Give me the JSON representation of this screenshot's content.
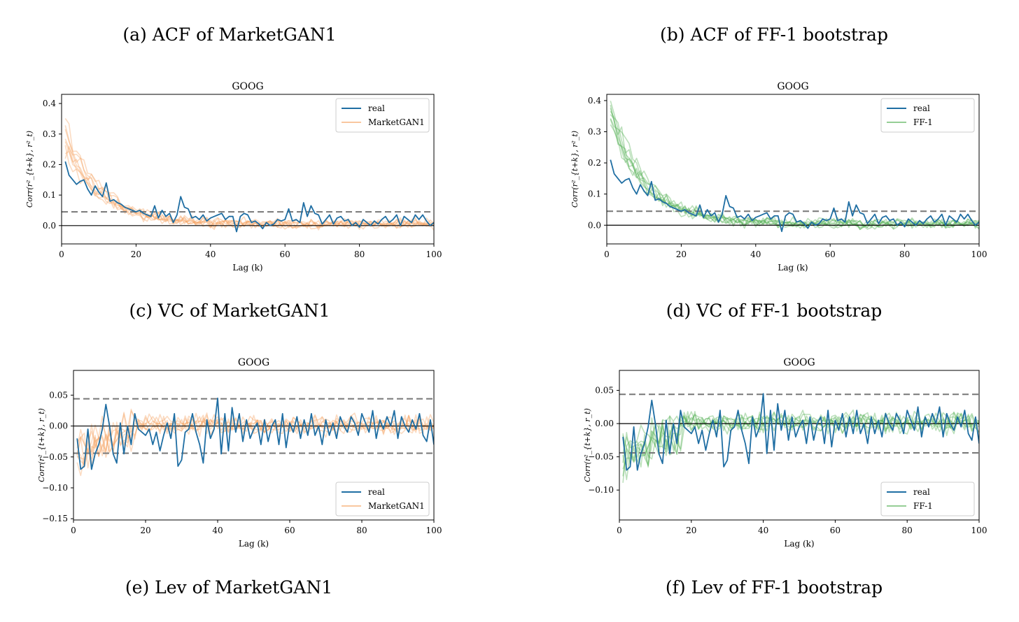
{
  "captions": [
    "(a) ACF of MarketGAN1",
    "(b) ACF of FF-1 bootstrap",
    "(c) VC of MarketGAN1",
    "(d) VC of FF-1 bootstrap",
    "(e) Lev of MarketGAN1",
    "(f) Lev of FF-1 bootstrap"
  ],
  "colors": {
    "real": "#1f6ea3",
    "marketgan": "#f5a15f",
    "ff1": "#4fae4f",
    "dashed": "#777777",
    "zero": "#000000"
  },
  "chart_data": [
    {
      "type": "line",
      "title": "GOOG",
      "ylabel": "Corr(r²_{t+k}, r²_t)",
      "xlabel": "Lag (k)",
      "xlim": [
        0,
        100
      ],
      "ylim": [
        -0.06,
        0.43
      ],
      "xticks": [
        "0",
        "20",
        "40",
        "60",
        "80",
        "100"
      ],
      "yticks": [
        [
          "0.0",
          0.0
        ],
        [
          "0.1",
          0.1
        ],
        [
          "0.2",
          0.2
        ],
        [
          "0.3",
          0.3
        ],
        [
          "0.4",
          0.4
        ]
      ],
      "hlines": {
        "zero": 0.0,
        "dashed": [
          0.045
        ]
      },
      "legend": {
        "position": "top-right",
        "entries": [
          "real",
          "MarketGAN1"
        ]
      },
      "series": [
        {
          "name": "real",
          "kind": "acf",
          "values": [
            0.21,
            0.165,
            0.15,
            0.135,
            0.145,
            0.15,
            0.12,
            0.1,
            0.13,
            0.11,
            0.095,
            0.14,
            0.08,
            0.085,
            0.075,
            0.07,
            0.06,
            0.055,
            0.05,
            0.045,
            0.05,
            0.04,
            0.035,
            0.03,
            0.065,
            0.025,
            0.05,
            0.03,
            0.04,
            0.01,
            0.035,
            0.095,
            0.06,
            0.055,
            0.025,
            0.03,
            0.02,
            0.035,
            0.015,
            0.025,
            0.03,
            0.035,
            0.04,
            0.02,
            0.03,
            0.03,
            -0.02,
            0.03,
            0.04,
            0.035,
            0.01,
            0.015,
            0.005,
            -0.01,
            0.01,
            0.0,
            0.005,
            0.02,
            0.015,
            0.02,
            0.055,
            0.015,
            0.02,
            0.01,
            0.075,
            0.03,
            0.065,
            0.04,
            0.035,
            0.005,
            0.02,
            0.035,
            0.005,
            0.025,
            0.03,
            0.015,
            0.02,
            0.0,
            0.01,
            -0.005,
            0.02,
            0.01,
            0.0,
            0.015,
            0.005,
            0.02,
            0.03,
            0.01,
            0.02,
            0.035,
            0.0,
            0.03,
            0.02,
            0.01,
            0.035,
            0.02,
            0.035,
            0.015,
            0.0,
            0.01
          ]
        },
        {
          "name": "MarketGAN1",
          "kind": "synthetic",
          "lines": 8,
          "seed": 11,
          "start": 0.29
        }
      ]
    },
    {
      "type": "line",
      "title": "GOOG",
      "ylabel": "Corr(r²_{t+k}, r²_t)",
      "xlabel": "Lag (k)",
      "xlim": [
        0,
        100
      ],
      "ylim": [
        -0.06,
        0.42
      ],
      "xticks": [
        "0",
        "20",
        "40",
        "60",
        "80",
        "100"
      ],
      "yticks": [
        [
          "0.0",
          0.0
        ],
        [
          "0.1",
          0.1
        ],
        [
          "0.2",
          0.2
        ],
        [
          "0.3",
          0.3
        ],
        [
          "0.4",
          0.4
        ]
      ],
      "hlines": {
        "zero": 0.0,
        "dashed": [
          0.045
        ]
      },
      "legend": {
        "position": "top-right",
        "entries": [
          "real",
          "FF-1"
        ]
      },
      "series": [
        {
          "name": "real",
          "kind": "acf",
          "values": [
            0.21,
            0.165,
            0.15,
            0.135,
            0.145,
            0.15,
            0.12,
            0.1,
            0.13,
            0.11,
            0.095,
            0.14,
            0.08,
            0.085,
            0.075,
            0.07,
            0.06,
            0.055,
            0.05,
            0.045,
            0.05,
            0.04,
            0.035,
            0.03,
            0.065,
            0.025,
            0.05,
            0.03,
            0.04,
            0.01,
            0.035,
            0.095,
            0.06,
            0.055,
            0.025,
            0.03,
            0.02,
            0.035,
            0.015,
            0.025,
            0.03,
            0.035,
            0.04,
            0.02,
            0.03,
            0.03,
            -0.02,
            0.03,
            0.04,
            0.035,
            0.01,
            0.015,
            0.005,
            -0.01,
            0.01,
            0.0,
            0.005,
            0.02,
            0.015,
            0.02,
            0.055,
            0.015,
            0.02,
            0.01,
            0.075,
            0.03,
            0.065,
            0.04,
            0.035,
            0.005,
            0.02,
            0.035,
            0.005,
            0.025,
            0.03,
            0.015,
            0.02,
            0.0,
            0.01,
            -0.005,
            0.02,
            0.01,
            0.0,
            0.015,
            0.005,
            0.02,
            0.03,
            0.01,
            0.02,
            0.035,
            0.0,
            0.03,
            0.02,
            0.01,
            0.035,
            0.02,
            0.035,
            0.015,
            0.0,
            0.01
          ]
        },
        {
          "name": "FF-1",
          "kind": "synthetic",
          "lines": 8,
          "seed": 23,
          "start": 0.35
        }
      ]
    },
    {
      "type": "line",
      "title": "GOOG",
      "ylabel": "Corr(r²_{t+k}, r_t)",
      "xlabel": "Lag (k)",
      "xlim": [
        0,
        100
      ],
      "ylim": [
        -0.152,
        0.09
      ],
      "xticks": [
        "0",
        "20",
        "40",
        "60",
        "80",
        "100"
      ],
      "yticks": [
        [
          "0.05",
          0.05
        ],
        [
          "0.00",
          0.0
        ],
        [
          "−0.05",
          -0.05
        ],
        [
          "−0.10",
          -0.1
        ],
        [
          "−0.15",
          -0.15
        ]
      ],
      "hlines": {
        "zero": 0.0,
        "dashed": [
          0.044,
          -0.044
        ]
      },
      "legend": {
        "position": "bottom-right",
        "entries": [
          "real",
          "MarketGAN1"
        ]
      },
      "series": [
        {
          "name": "real",
          "kind": "lev",
          "values": [
            -0.02,
            -0.07,
            -0.065,
            -0.005,
            -0.07,
            -0.045,
            -0.03,
            -0.005,
            0.035,
            0.0,
            -0.045,
            -0.06,
            0.005,
            -0.045,
            0.0,
            -0.03,
            0.02,
            -0.005,
            -0.01,
            -0.015,
            -0.005,
            -0.03,
            -0.01,
            -0.04,
            -0.015,
            0.005,
            -0.02,
            0.02,
            -0.065,
            -0.055,
            -0.01,
            -0.005,
            0.02,
            -0.01,
            -0.03,
            -0.06,
            0.01,
            -0.02,
            -0.005,
            0.045,
            -0.045,
            0.02,
            -0.04,
            0.03,
            -0.01,
            0.02,
            -0.025,
            0.01,
            -0.02,
            -0.005,
            0.005,
            -0.03,
            0.01,
            -0.025,
            0.0,
            0.01,
            -0.03,
            0.02,
            -0.035,
            0.005,
            -0.01,
            0.015,
            -0.02,
            0.01,
            -0.015,
            0.02,
            -0.015,
            0.0,
            -0.03,
            0.01,
            -0.015,
            0.005,
            -0.02,
            0.015,
            0.0,
            -0.01,
            0.015,
            0.005,
            -0.015,
            0.02,
            0.005,
            -0.01,
            0.025,
            -0.02,
            0.01,
            -0.005,
            0.015,
            0.0,
            0.025,
            -0.02,
            0.015,
            0.0,
            -0.01,
            0.01,
            -0.005,
            0.02,
            -0.015,
            -0.025,
            0.01,
            -0.03
          ]
        },
        {
          "name": "MarketGAN1",
          "kind": "synthetic",
          "lines": 8,
          "seed": 37
        }
      ]
    },
    {
      "type": "line",
      "title": "GOOG",
      "ylabel": "Corr(r²_{t+k}, r_t)",
      "xlabel": "Lag (k)",
      "xlim": [
        0,
        100
      ],
      "ylim": [
        -0.145,
        0.08
      ],
      "xticks": [
        "0",
        "20",
        "40",
        "60",
        "80",
        "100"
      ],
      "yticks": [
        [
          "0.05",
          0.05
        ],
        [
          "0.00",
          0.0
        ],
        [
          "−0.05",
          -0.05
        ],
        [
          "−0.10",
          -0.1
        ]
      ],
      "hlines": {
        "zero": 0.0,
        "dashed": [
          0.044,
          -0.044
        ]
      },
      "legend": {
        "position": "bottom-right",
        "entries": [
          "real",
          "FF-1"
        ]
      },
      "series": [
        {
          "name": "real",
          "kind": "lev",
          "values": [
            -0.02,
            -0.07,
            -0.065,
            -0.005,
            -0.07,
            -0.045,
            -0.03,
            -0.005,
            0.035,
            0.0,
            -0.045,
            -0.06,
            0.005,
            -0.045,
            0.0,
            -0.03,
            0.02,
            -0.005,
            -0.01,
            -0.015,
            -0.005,
            -0.03,
            -0.01,
            -0.04,
            -0.015,
            0.005,
            -0.02,
            0.02,
            -0.065,
            -0.055,
            -0.01,
            -0.005,
            0.02,
            -0.01,
            -0.03,
            -0.06,
            0.01,
            -0.02,
            -0.005,
            0.045,
            -0.045,
            0.02,
            -0.04,
            0.03,
            -0.01,
            0.02,
            -0.025,
            0.01,
            -0.02,
            -0.005,
            0.005,
            -0.03,
            0.01,
            -0.025,
            0.0,
            0.01,
            -0.03,
            0.02,
            -0.035,
            0.005,
            -0.01,
            0.015,
            -0.02,
            0.01,
            -0.015,
            0.02,
            -0.015,
            0.0,
            -0.03,
            0.01,
            -0.015,
            0.005,
            -0.02,
            0.015,
            0.0,
            -0.01,
            0.015,
            0.005,
            -0.015,
            0.02,
            0.005,
            -0.01,
            0.025,
            -0.02,
            0.01,
            -0.005,
            0.015,
            0.0,
            0.025,
            -0.02,
            0.015,
            0.0,
            -0.01,
            0.01,
            -0.005,
            0.02,
            -0.015,
            -0.025,
            0.01,
            -0.03
          ]
        },
        {
          "name": "FF-1",
          "kind": "synthetic",
          "lines": 8,
          "seed": 53
        }
      ]
    }
  ]
}
